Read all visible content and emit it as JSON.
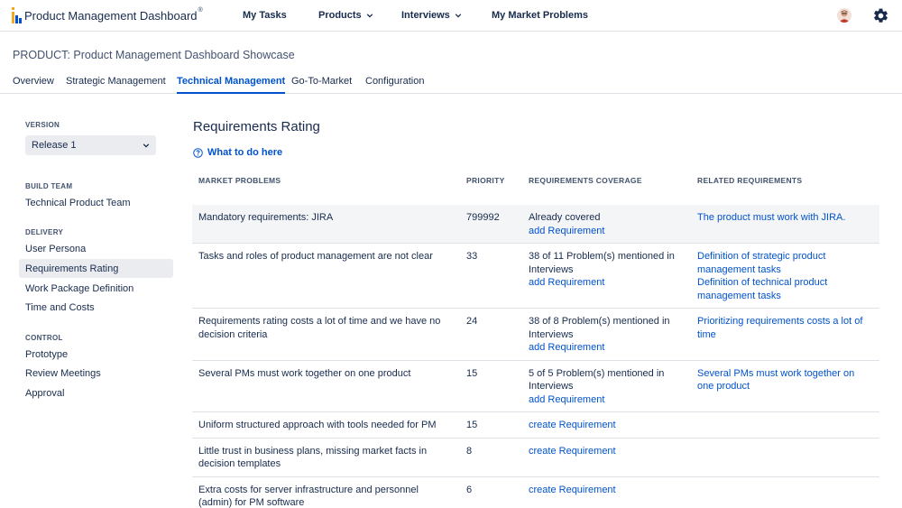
{
  "app": {
    "logo_text": "Product Management Dashboard",
    "logo_reg": "®"
  },
  "nav": {
    "my_tasks": "My Tasks",
    "products": "Products",
    "interviews": "Interviews",
    "my_market_problems": "My Market Problems"
  },
  "product": {
    "title": "PRODUCT: Product Management Dashboard Showcase"
  },
  "tabs": [
    {
      "label": "Overview"
    },
    {
      "label": "Strategic Management"
    },
    {
      "label": "Technical Management",
      "active": true
    },
    {
      "label": "Go-To-Market"
    },
    {
      "label": "Configuration"
    }
  ],
  "sidebar": {
    "version_heading": "VERSION",
    "version_value": "Release 1",
    "build_team_heading": "BUILD TEAM",
    "build_team_value": "Technical Product Team",
    "delivery_heading": "DELIVERY",
    "delivery_items": [
      "User Persona",
      "Requirements Rating",
      "Work Package Definition",
      "Time and Costs"
    ],
    "control_heading": "CONTROL",
    "control_items": [
      "Prototype",
      "Review Meetings",
      "Approval"
    ]
  },
  "main": {
    "title": "Requirements Rating",
    "help_link": "What to do here",
    "columns": [
      "MARKET PROBLEMS",
      "PRIORITY",
      "REQUIREMENTS COVERAGE",
      "RELATED REQUIREMENTS"
    ],
    "rows": [
      {
        "problem": "Mandatory requirements: JIRA",
        "priority": "799992",
        "coverage": "Already covered",
        "action": "add Requirement",
        "related": [
          "The product must work with JIRA."
        ]
      },
      {
        "problem": "Tasks and roles of product management are not clear",
        "priority": "33",
        "coverage": "38 of 11 Problem(s) mentioned in Interviews",
        "action": "add Requirement",
        "related": [
          "Definition of strategic product management tasks",
          "Definition of technical product management tasks"
        ]
      },
      {
        "problem": "Requirements rating costs a lot of time and we have no decision criteria",
        "priority": "24",
        "coverage": "38 of 8 Problem(s) mentioned in Interviews",
        "action": "add Requirement",
        "related": [
          "Prioritizing requirements costs a lot of time"
        ]
      },
      {
        "problem": "Several PMs must work together on one product",
        "priority": "15",
        "coverage": "5 of 5 Problem(s) mentioned in Interviews",
        "action": "add Requirement",
        "related": [
          "Several PMs must work together on one product"
        ]
      },
      {
        "problem": "Uniform structured approach with tools needed for PM",
        "priority": "15",
        "coverage": "",
        "action": "create Requirement",
        "related": []
      },
      {
        "problem": "Little trust in business plans, missing market facts in decision templates",
        "priority": "8",
        "coverage": "",
        "action": "create Requirement",
        "related": []
      },
      {
        "problem": "Extra costs for server infrastructure and personnel (admin) for PM software",
        "priority": "6",
        "coverage": "",
        "action": "create Requirement",
        "related": []
      }
    ]
  },
  "colors": {
    "link": "#0052cc",
    "text": "#172b4d",
    "muted": "#42526e",
    "active_bg": "#ebecf0"
  }
}
